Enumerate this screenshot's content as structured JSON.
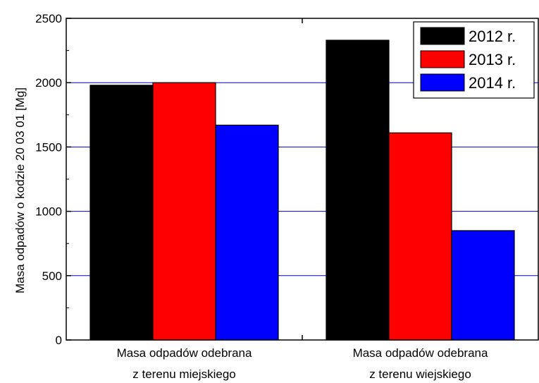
{
  "chart_data": {
    "type": "bar",
    "categories": [
      [
        "Masa odpadów odebrana",
        "z terenu miejskiego"
      ],
      [
        "Masa odpadów odebrana",
        "z terenu wiejskiego"
      ]
    ],
    "series": [
      {
        "name": "2012 r.",
        "color": "#000000",
        "values": [
          1980,
          2330
        ]
      },
      {
        "name": "2013 r.",
        "color": "#ff0000",
        "values": [
          2000,
          1610
        ]
      },
      {
        "name": "2014 r.",
        "color": "#0000ff",
        "values": [
          1670,
          850
        ]
      }
    ],
    "title": "",
    "xlabel": "",
    "ylabel": "Masa odpadów o kodzie 20 03 01 [Mg]",
    "ylim": [
      0,
      2500
    ],
    "yticks": [
      0,
      500,
      1000,
      1500,
      2000,
      2500
    ],
    "grid": true,
    "grid_color": "#0000cc",
    "legend_position": "top-right"
  }
}
